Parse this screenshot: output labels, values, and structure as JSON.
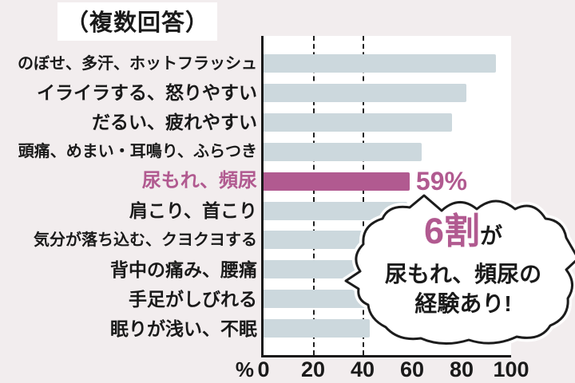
{
  "title_note": "（複数回答）",
  "chart_data": {
    "type": "bar",
    "orientation": "horizontal",
    "title": "（複数回答）",
    "categories": [
      "のぼせ、多汗、ホットフラッシュ",
      "イライラする、怒りやすい",
      "だるい、疲れやすい",
      "頭痛、めまい・耳鳴り、ふらつき",
      "尿もれ、頻尿",
      "肩こり、首こり",
      "気分が落ち込む、クヨクヨする",
      "背中の痛み、腰痛",
      "手足がしびれる",
      "眠りが浅い、不眠"
    ],
    "values": [
      94,
      82,
      76,
      64,
      59,
      58,
      43,
      38,
      42,
      43
    ],
    "unit": "%",
    "xlim": [
      0,
      100
    ],
    "xticks": [
      "0",
      "20",
      "40",
      "60",
      "80",
      "100"
    ],
    "gridlines_at": [
      20,
      40
    ],
    "grid": "dashed-vertical",
    "legend": "none",
    "highlight_index": 4,
    "highlight_value_label": "59%"
  },
  "x_axis": {
    "unit_symbol": "%"
  },
  "callout": {
    "highlight": "6割",
    "suffix": "が",
    "line2": "尿もれ、頻尿の",
    "line3": "経験あり!"
  },
  "colors": {
    "background": "#f2edee",
    "plot_background": "#ffffff",
    "bar": "#ccd8dd",
    "accent_pink": "#b15a90",
    "text": "#1a1a1a"
  }
}
